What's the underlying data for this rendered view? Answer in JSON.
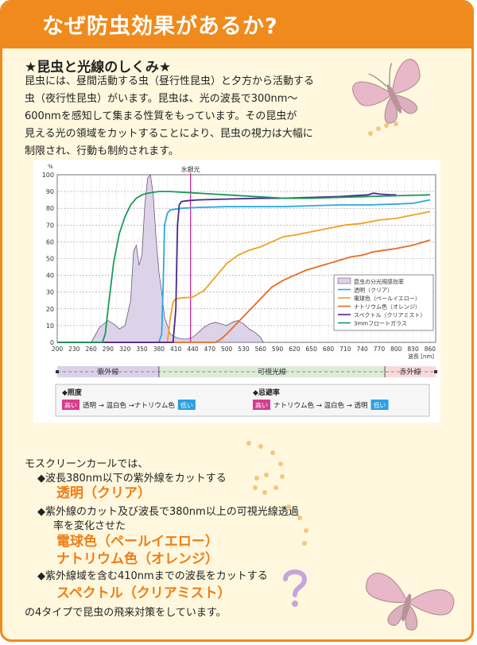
{
  "header": {
    "title": "なぜ防虫効果があるか?"
  },
  "section": {
    "title": "★昆虫と光線のしくみ★",
    "paragraph_lines": [
      "昆虫には、昼間活動する虫（昼行性昆虫）と夕方から活動する",
      "虫（夜行性昆虫）がいます。昆虫は、光の波長で300nm～",
      "600nmを感知して集まる性質をもっています。その昆虫が",
      "見える光の領域をカットすることにより、昆虫の視力は大幅に",
      "制限され、行動も制約されます。"
    ]
  },
  "chart_data": {
    "type": "line",
    "y_unit": "%",
    "x_unit": "波長 [nm]",
    "ylim": [
      0,
      100
    ],
    "xlim": [
      200,
      870
    ],
    "y_ticks": [
      0,
      10,
      20,
      30,
      40,
      50,
      60,
      70,
      80,
      90,
      100
    ],
    "x_ticks": [
      200,
      230,
      260,
      290,
      320,
      350,
      380,
      410,
      440,
      470,
      500,
      530,
      560,
      590,
      620,
      650,
      680,
      710,
      740,
      770,
      800,
      830,
      860
    ],
    "grid": true,
    "legend_position": "bottom-right",
    "annotations": [
      {
        "text": "水銀光",
        "x": 436
      }
    ],
    "insect_sensitivity": {
      "name": "昆虫の分光視感効率",
      "color": "#ddd3e8",
      "x": [
        260,
        275,
        290,
        300,
        310,
        320,
        330,
        335,
        340,
        345,
        350,
        355,
        360,
        365,
        370,
        375,
        380,
        385,
        390,
        400,
        410,
        420,
        430,
        440,
        450,
        460,
        470,
        480,
        490,
        500,
        510,
        520,
        530,
        540,
        550,
        560,
        565
      ],
      "values": [
        0,
        9,
        13,
        11,
        8,
        10,
        25,
        54,
        58,
        46,
        52,
        82,
        98,
        100,
        88,
        62,
        42,
        30,
        15,
        5,
        3,
        2,
        2,
        3,
        6,
        9,
        11,
        12,
        11,
        10,
        12,
        13,
        11,
        8,
        6,
        3,
        0
      ]
    },
    "series": [
      {
        "name": "透明（クリア）",
        "color": "#2aa8e0",
        "x": [
          200,
          380,
          385,
          388,
          390,
          395,
          400,
          420,
          450,
          500,
          560,
          600,
          650,
          700,
          750,
          800,
          830,
          860
        ],
        "values": [
          0,
          0,
          5,
          40,
          70,
          77,
          79,
          80,
          80.5,
          81,
          81,
          81,
          81.5,
          82,
          82,
          82.5,
          83,
          85
        ]
      },
      {
        "name": "電球色（ペールイエロー）",
        "color": "#f0a020",
        "x": [
          200,
          395,
          400,
          405,
          410,
          420,
          440,
          460,
          480,
          500,
          520,
          540,
          560,
          580,
          600,
          620,
          650,
          680,
          710,
          740,
          770,
          800,
          830,
          860
        ],
        "values": [
          0,
          0,
          14,
          24,
          26,
          26.5,
          27,
          31,
          39,
          47,
          52,
          55,
          57,
          60,
          63,
          64,
          66,
          68,
          70,
          71,
          73,
          74,
          76,
          78
        ]
      },
      {
        "name": "ナトリウム色（オレンジ）",
        "color": "#ea6a22",
        "x": [
          200,
          480,
          490,
          500,
          520,
          540,
          560,
          580,
          600,
          620,
          640,
          660,
          680,
          700,
          720,
          740,
          760,
          780,
          800,
          830,
          860
        ],
        "values": [
          0,
          0,
          2,
          5,
          12,
          19,
          26,
          33,
          37,
          40,
          43,
          45,
          47,
          49,
          51,
          52,
          54,
          55,
          56,
          58,
          61
        ]
      },
      {
        "name": "スペクトル（クリアミスト）",
        "color": "#4a2a8c",
        "x": [
          200,
          405,
          410,
          413,
          416,
          420,
          430,
          450,
          500,
          560,
          600,
          650,
          700,
          750,
          760,
          770,
          790,
          800
        ],
        "values": [
          0,
          0,
          20,
          70,
          82,
          84,
          84.5,
          85,
          85.5,
          86,
          86,
          86.5,
          87,
          88,
          89,
          88.5,
          88,
          88
        ]
      },
      {
        "name": "3mmフロートガラス",
        "color": "#1a9a5a",
        "x": [
          200,
          280,
          285,
          290,
          300,
          310,
          320,
          330,
          340,
          350,
          360,
          370,
          380,
          400,
          450,
          500,
          550,
          600,
          650,
          700,
          750,
          800,
          860
        ],
        "values": [
          0,
          0,
          5,
          20,
          48,
          65,
          75,
          82,
          86,
          88,
          89,
          89.5,
          90,
          90,
          89,
          88,
          87,
          86,
          86,
          86.5,
          87,
          87.5,
          88
        ]
      }
    ],
    "bands": [
      {
        "label": "紫外線",
        "from": 200,
        "to": 380,
        "color": "#dbd2ea"
      },
      {
        "label": "可視光線",
        "from": 380,
        "to": 780,
        "color": "#dcecd8"
      },
      {
        "label": "赤外線",
        "from": 780,
        "to": 870,
        "color": "#f8dadc"
      }
    ],
    "band_ticks": [
      380,
      780
    ],
    "rankings": [
      {
        "title": "◆照度",
        "high": "高い",
        "order": "透明 → 温白色 →ナトリウム色",
        "low": "低い"
      },
      {
        "title": "◆忌避率",
        "high": "高い",
        "order": "ナトリウム色 → 温白色 → 透明",
        "low": "低い"
      }
    ]
  },
  "bottom": {
    "intro": "モスクリーンカールでは、",
    "bullet1": "◆波長380nm以下の紫外線をカットする",
    "product1": "透明（クリア）",
    "bullet2_line1": "◆紫外線のカット及び波長で380nm以上の可視光線透過",
    "bullet2_line2": "率を変化させた",
    "product2": "電球色（ペールイエロー）",
    "product3": "ナトリウム色（オレンジ）",
    "bullet3": "◆紫外線域を含む410nmまでの波長をカットする",
    "product4": "スペクトル（クリアミスト）",
    "closing": "の4タイプで昆虫の飛来対策をしています。"
  },
  "colors": {
    "border": "#f08a1c",
    "background": "#fff8df",
    "emphasis": "#f07d15",
    "high_badge": "#d63c8f",
    "low_badge": "#2aa0e0"
  },
  "icons": [
    "moth-icon",
    "question-mark-icon",
    "dotted-swirl-icon"
  ]
}
